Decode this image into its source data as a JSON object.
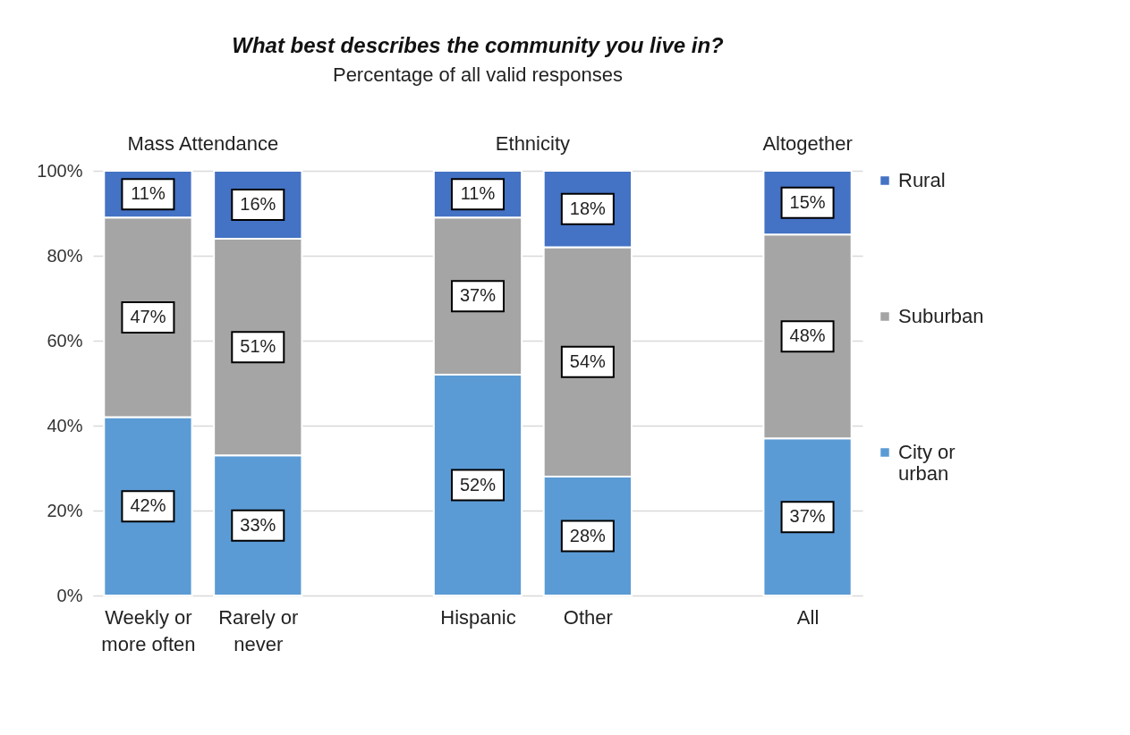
{
  "chart_data": {
    "type": "bar",
    "title": "What best describes the community you live in?",
    "subtitle": "Percentage of all valid responses",
    "categories": [
      "Weekly or more often",
      "Rarely or never",
      null,
      "Hispanic",
      "Other",
      null,
      "All"
    ],
    "stacked": true,
    "series": [
      {
        "name": "City or urban",
        "color": "#5b9bd5",
        "values": [
          42,
          33,
          null,
          52,
          28,
          null,
          37
        ]
      },
      {
        "name": "Suburban",
        "color": "#a5a5a5",
        "values": [
          47,
          51,
          null,
          37,
          54,
          null,
          48
        ]
      },
      {
        "name": "Rural",
        "color": "#4472c4",
        "values": [
          11,
          16,
          null,
          11,
          18,
          null,
          15
        ]
      }
    ],
    "ylim": [
      0,
      100
    ],
    "yticks": [
      {
        "value": 0,
        "label": "0%"
      },
      {
        "value": 20,
        "label": "20%"
      },
      {
        "value": 40,
        "label": "40%"
      },
      {
        "value": 60,
        "label": "60%"
      },
      {
        "value": 80,
        "label": "80%"
      },
      {
        "value": 100,
        "label": "100%"
      }
    ],
    "value_labels": [
      [
        "42%",
        "33%",
        null,
        "52%",
        "28%",
        null,
        "37%"
      ],
      [
        "47%",
        "51%",
        null,
        "37%",
        "54%",
        null,
        "48%"
      ],
      [
        "11%",
        "16%",
        null,
        "11%",
        "18%",
        null,
        "15%"
      ]
    ],
    "annotations": [
      "Mass Attendance",
      "Ethnicity",
      "Altogether"
    ],
    "grid": "y",
    "legend": "right"
  }
}
